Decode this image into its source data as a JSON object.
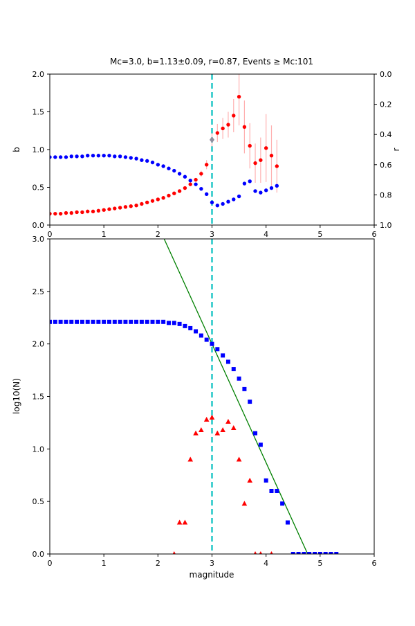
{
  "figure": {
    "background": "#ffffff",
    "mc_line_color": "#00bfbf",
    "fit_line_color": "#008000",
    "b_series_color": "#ff0000",
    "r_series_color": "#0000ff",
    "errorbar_color": "#ffb0b0",
    "mc_marker_color": "#8f8f9f"
  },
  "chart_data": [
    {
      "type": "scatter",
      "title": "Mc=3.0, b=1.13±0.09, r=0.87, Events ≥ Mc:101",
      "xlabel": "",
      "ylabel_left": "b",
      "ylabel_right": "r",
      "xlim": [
        0,
        6
      ],
      "ylim_left": [
        0.0,
        2.0
      ],
      "ylim_right": [
        0.0,
        1.0
      ],
      "right_axis_top_value": 0.0,
      "right_axis_bottom_value": 1.0,
      "grid": false,
      "xticks": [
        "0",
        "1",
        "2",
        "3",
        "4",
        "5",
        "6"
      ],
      "yticks_left": [
        "0.0",
        "0.5",
        "1.0",
        "1.5",
        "2.0"
      ],
      "yticks_right": [
        "0.0",
        "0.2",
        "0.4",
        "0.6",
        "0.8",
        "1.0"
      ],
      "vline": {
        "x": 3.0,
        "color": "#00bfbf",
        "style": "dashed"
      },
      "series": [
        {
          "name": "b-value-red-dots",
          "marker": "circle",
          "color": "#ff0000",
          "errorbar_color": "#ffb0b0",
          "x": [
            0.0,
            0.1,
            0.2,
            0.3,
            0.4,
            0.5,
            0.6,
            0.7,
            0.8,
            0.9,
            1.0,
            1.1,
            1.2,
            1.3,
            1.4,
            1.5,
            1.6,
            1.7,
            1.8,
            1.9,
            2.0,
            2.1,
            2.2,
            2.3,
            2.4,
            2.5,
            2.6,
            2.7,
            2.8,
            2.9,
            3.0,
            3.1,
            3.2,
            3.3,
            3.4,
            3.5,
            3.6,
            3.7,
            3.8,
            3.9,
            4.0,
            4.1,
            4.2
          ],
          "y": [
            0.15,
            0.15,
            0.15,
            0.16,
            0.16,
            0.17,
            0.17,
            0.18,
            0.18,
            0.19,
            0.2,
            0.21,
            0.22,
            0.23,
            0.24,
            0.25,
            0.26,
            0.28,
            0.3,
            0.32,
            0.34,
            0.36,
            0.39,
            0.42,
            0.45,
            0.49,
            0.54,
            0.6,
            0.68,
            0.8,
            1.13,
            1.22,
            1.28,
            1.33,
            1.45,
            1.7,
            1.3,
            1.05,
            0.82,
            0.86,
            1.02,
            0.92,
            0.78
          ],
          "yerr": [
            0,
            0,
            0,
            0,
            0,
            0,
            0,
            0,
            0,
            0,
            0,
            0,
            0,
            0,
            0,
            0,
            0,
            0,
            0,
            0,
            0,
            0,
            0,
            0,
            0,
            0,
            0,
            0,
            0.04,
            0.06,
            0.09,
            0.12,
            0.14,
            0.17,
            0.22,
            0.38,
            0.35,
            0.3,
            0.26,
            0.3,
            0.45,
            0.4,
            0.35
          ]
        },
        {
          "name": "r-value-blue-dots",
          "marker": "circle",
          "color": "#0000ff",
          "x": [
            0.0,
            0.1,
            0.2,
            0.3,
            0.4,
            0.5,
            0.6,
            0.7,
            0.8,
            0.9,
            1.0,
            1.1,
            1.2,
            1.3,
            1.4,
            1.5,
            1.6,
            1.7,
            1.8,
            1.9,
            2.0,
            2.1,
            2.2,
            2.3,
            2.4,
            2.5,
            2.6,
            2.7,
            2.8,
            2.9,
            3.0,
            3.1,
            3.2,
            3.3,
            3.4,
            3.5,
            3.6,
            3.7,
            3.8,
            3.9,
            4.0,
            4.1,
            4.2
          ],
          "y": [
            0.9,
            0.9,
            0.9,
            0.9,
            0.91,
            0.91,
            0.91,
            0.92,
            0.92,
            0.92,
            0.92,
            0.92,
            0.91,
            0.91,
            0.9,
            0.89,
            0.88,
            0.86,
            0.85,
            0.83,
            0.8,
            0.78,
            0.75,
            0.72,
            0.68,
            0.64,
            0.59,
            0.54,
            0.48,
            0.41,
            0.3,
            0.26,
            0.28,
            0.31,
            0.34,
            0.38,
            0.55,
            0.58,
            0.45,
            0.43,
            0.46,
            0.49,
            0.52
          ]
        },
        {
          "name": "mc-b-marker",
          "marker": "diamond",
          "color": "#8f8f9f",
          "x": [
            3.0
          ],
          "y": [
            1.13
          ]
        }
      ]
    },
    {
      "type": "scatter",
      "title": "",
      "xlabel": "magnitude",
      "ylabel": "log10(N)",
      "xlim": [
        0,
        6
      ],
      "ylim": [
        0.0,
        3.0
      ],
      "grid": false,
      "xticks": [
        "0",
        "1",
        "2",
        "3",
        "4",
        "5",
        "6"
      ],
      "yticks_left": [
        "0.0",
        "0.5",
        "1.0",
        "1.5",
        "2.0",
        "2.5",
        "3.0"
      ],
      "vline": {
        "x": 3.0,
        "color": "#00bfbf",
        "style": "dashed"
      },
      "series": [
        {
          "name": "gr-fit-line",
          "line": true,
          "color": "#008000",
          "x": [
            2.115,
            4.77
          ],
          "y": [
            3.0,
            0.0
          ]
        },
        {
          "name": "cumulative-counts-blue-squares",
          "marker": "square",
          "color": "#0000ff",
          "x": [
            0.0,
            0.1,
            0.2,
            0.3,
            0.4,
            0.5,
            0.6,
            0.7,
            0.8,
            0.9,
            1.0,
            1.1,
            1.2,
            1.3,
            1.4,
            1.5,
            1.6,
            1.7,
            1.8,
            1.9,
            2.0,
            2.1,
            2.2,
            2.3,
            2.4,
            2.5,
            2.6,
            2.7,
            2.8,
            2.9,
            3.0,
            3.1,
            3.2,
            3.3,
            3.4,
            3.5,
            3.6,
            3.7,
            3.8,
            3.9,
            4.0,
            4.1,
            4.2,
            4.3,
            4.4,
            4.5,
            4.6,
            4.7,
            4.8,
            4.9,
            5.0,
            5.1,
            5.2,
            5.3
          ],
          "y": [
            2.21,
            2.21,
            2.21,
            2.21,
            2.21,
            2.21,
            2.21,
            2.21,
            2.21,
            2.21,
            2.21,
            2.21,
            2.21,
            2.21,
            2.21,
            2.21,
            2.21,
            2.21,
            2.21,
            2.21,
            2.21,
            2.21,
            2.2,
            2.2,
            2.19,
            2.17,
            2.15,
            2.12,
            2.08,
            2.04,
            2.0,
            1.95,
            1.89,
            1.83,
            1.76,
            1.67,
            1.57,
            1.45,
            1.15,
            1.04,
            0.7,
            0.6,
            0.6,
            0.48,
            0.3,
            0.0,
            0.0,
            0.0,
            0.0,
            0.0,
            0.0,
            0.0,
            0.0,
            0.0
          ]
        },
        {
          "name": "noncumulative-counts-red-triangles",
          "marker": "triangle",
          "color": "#ff0000",
          "x": [
            2.3,
            2.4,
            2.5,
            2.6,
            2.7,
            2.8,
            2.9,
            3.0,
            3.1,
            3.2,
            3.3,
            3.4,
            3.5,
            3.6,
            3.7,
            3.8,
            3.9,
            4.1
          ],
          "y": [
            0.0,
            0.3,
            0.3,
            0.9,
            1.15,
            1.18,
            1.28,
            1.3,
            1.15,
            1.18,
            1.26,
            1.2,
            0.9,
            0.48,
            0.7,
            0.0,
            0.0,
            0.0
          ]
        }
      ]
    }
  ]
}
